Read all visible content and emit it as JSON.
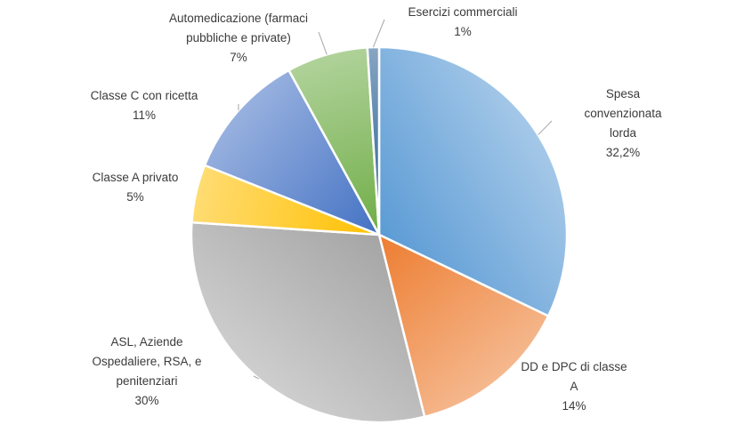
{
  "chart_data": {
    "type": "pie",
    "title": "",
    "start_angle_deg": 0,
    "direction": "clockwise",
    "slices": [
      {
        "label": "Spesa convenzionata lorda",
        "value_label": "32,2%",
        "value": 32.2,
        "color": "#5b9bd5"
      },
      {
        "label": "DD e DPC di classe A",
        "value_label": "14%",
        "value": 14,
        "color": "#ed7d31"
      },
      {
        "label": "ASL, Aziende Ospedaliere, RSA, e penitenziari",
        "value_label": "30%",
        "value": 30,
        "color": "#a5a5a5"
      },
      {
        "label": "Classe A privato",
        "value_label": "5%",
        "value": 5,
        "color": "#ffc000"
      },
      {
        "label": "Classe C con ricetta",
        "value_label": "11%",
        "value": 11,
        "color": "#4472c4"
      },
      {
        "label": "Automedicazione (farmaci pubbliche e private)",
        "value_label": "7%",
        "value": 7,
        "color": "#70ad47"
      },
      {
        "label": "Esercizi commerciali",
        "value_label": "1%",
        "value": 1,
        "color": "#255e91"
      }
    ]
  },
  "labels": [
    {
      "lines": [
        "Spesa",
        "convenzionata",
        "lorda",
        "32,2%"
      ]
    },
    {
      "lines": [
        "DD e DPC di classe",
        "A",
        "14%"
      ]
    },
    {
      "lines": [
        "ASL, Aziende",
        "Ospedaliere, RSA, e",
        "penitenziari",
        "30%"
      ]
    },
    {
      "lines": [
        "Classe A privato",
        "5%"
      ]
    },
    {
      "lines": [
        "Classe C con ricetta",
        "11%"
      ]
    },
    {
      "lines": [
        "Automedicazione (farmaci",
        "pubbliche e private)",
        "7%"
      ]
    },
    {
      "lines": [
        "Esercizi commerciali",
        "1%"
      ]
    }
  ]
}
